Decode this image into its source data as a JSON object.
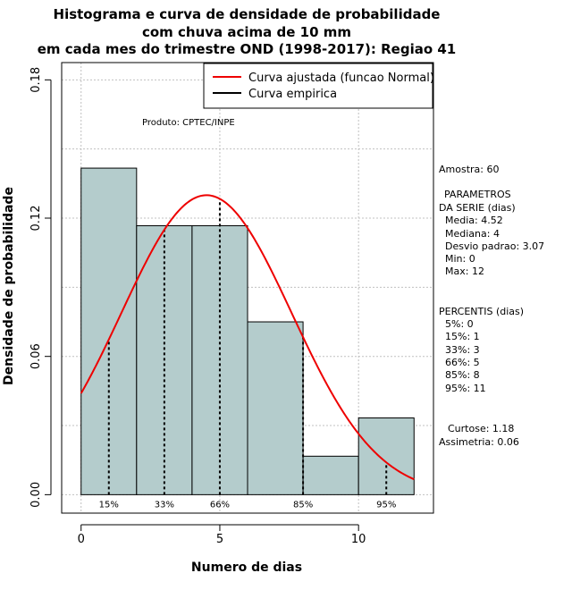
{
  "chart_data": {
    "type": "bar",
    "title": [
      "Histograma e curva de densidade de probabilidade",
      "com chuva acima de 10 mm",
      "em cada mes do trimestre OND (1998-2017): Regiao 41"
    ],
    "xlabel": "Numero de dias",
    "ylabel": "Densidade de probabilidade",
    "xlim": [
      -0.7,
      12.7
    ],
    "ylim": [
      -0.008,
      0.1875
    ],
    "x_ticks": [
      0,
      5,
      10
    ],
    "y_ticks": [
      0.0,
      0.06,
      0.12,
      0.18
    ],
    "y_tick_labels": [
      "0.00",
      "0.06",
      "0.12",
      "0.18"
    ],
    "grid": true,
    "bins": [
      {
        "x0": 0,
        "x1": 2,
        "density": 0.1417
      },
      {
        "x0": 2,
        "x1": 4,
        "density": 0.1167
      },
      {
        "x0": 4,
        "x1": 6,
        "density": 0.1167
      },
      {
        "x0": 6,
        "x1": 8,
        "density": 0.075
      },
      {
        "x0": 8,
        "x1": 10,
        "density": 0.0167
      },
      {
        "x0": 10,
        "x1": 12,
        "density": 0.0333
      }
    ],
    "normal_fit": {
      "mean": 4.52,
      "sd": 3.07,
      "x_from": 0,
      "x_to": 12
    },
    "percentile_lines": [
      {
        "x": 1,
        "label": "15%"
      },
      {
        "x": 3,
        "label": "33%"
      },
      {
        "x": 5,
        "label": "66%"
      },
      {
        "x": 8,
        "label": "85%"
      },
      {
        "x": 11,
        "label": "95%"
      }
    ],
    "legend": {
      "position": "top-right",
      "entries": [
        {
          "label": "Curva ajustada (funcao Normal)",
          "color": "#ee0000"
        },
        {
          "label": "Curva empirica",
          "color": "#000000"
        }
      ]
    },
    "annotation": "Produto: CPTEC/INPE",
    "colors": {
      "bar_fill": "#b4cccc",
      "curve": "#ee0000",
      "grid": "#c0c0c0"
    }
  },
  "stats_panel": {
    "sample": "Amostra: 60",
    "params_title_1": "PARAMETROS",
    "params_title_2": "DA SERIE (dias)",
    "params": [
      "Media: 4.52",
      "Mediana: 4",
      "Desvio padrao: 3.07",
      "Min: 0",
      "Max: 12"
    ],
    "percentis_title": "PERCENTIS (dias)",
    "percentis": [
      "5%: 0",
      "15%: 1",
      "33%: 3",
      "66%: 5",
      "85%: 8",
      "95%: 11"
    ],
    "curtose": "Curtose: 1.18",
    "assimetria": "Assimetria: 0.06"
  }
}
